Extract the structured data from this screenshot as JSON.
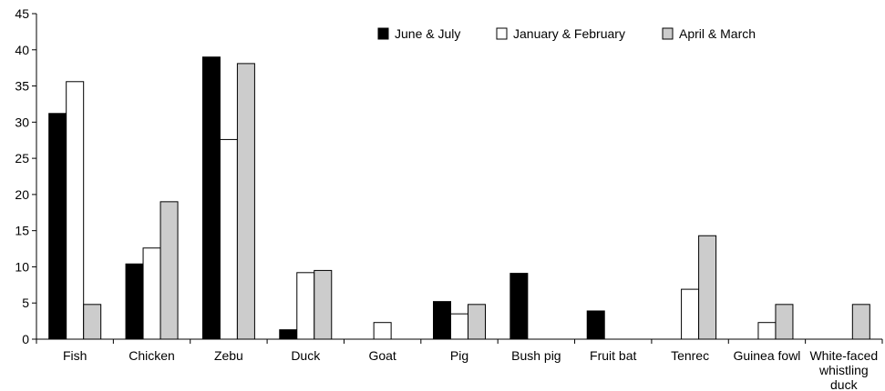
{
  "chart_data": {
    "type": "bar",
    "title": "",
    "xlabel": "",
    "ylabel": "",
    "ylim": [
      0,
      45
    ],
    "yticks": [
      0,
      5,
      10,
      15,
      20,
      25,
      30,
      35,
      40,
      45
    ],
    "grid": false,
    "legend_position": "top-right",
    "categories": [
      "Fish",
      "Chicken",
      "Zebu",
      "Duck",
      "Goat",
      "Pig",
      "Bush pig",
      "Fruit bat",
      "Tenrec",
      "Guinea fowl",
      "White-faced whistling duck"
    ],
    "category_lines": [
      [
        "Fish"
      ],
      [
        "Chicken"
      ],
      [
        "Zebu"
      ],
      [
        "Duck"
      ],
      [
        "Goat"
      ],
      [
        "Pig"
      ],
      [
        "Bush pig"
      ],
      [
        "Fruit bat"
      ],
      [
        "Tenrec"
      ],
      [
        "Guinea fowl"
      ],
      [
        "White-faced",
        "whistling",
        "duck"
      ]
    ],
    "series": [
      {
        "name": "June & July",
        "color": "#000000",
        "values": [
          31.2,
          10.4,
          39.0,
          1.3,
          0,
          5.2,
          9.1,
          3.9,
          0,
          0,
          0
        ]
      },
      {
        "name": "January & February",
        "color": "#ffffff",
        "values": [
          35.6,
          12.6,
          27.6,
          9.2,
          2.3,
          3.5,
          0,
          0,
          6.9,
          2.3,
          0
        ]
      },
      {
        "name": "April & March",
        "color": "#cccccc",
        "values": [
          4.8,
          19.0,
          38.1,
          9.5,
          0,
          4.8,
          0,
          0,
          14.3,
          4.8,
          4.8
        ]
      }
    ]
  }
}
